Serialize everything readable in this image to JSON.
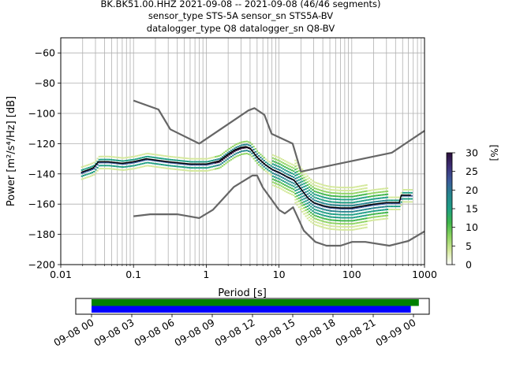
{
  "chart_data": {
    "type": "heatmap",
    "title_lines": [
      "BK.BK51.00.HHZ   2021-09-08 -- 2021-09-08  (46/46 segments)",
      "sensor_type STS-5A sensor_sn STS5A-BV",
      "datalogger_type Q8 datalogger_sn Q8-BV"
    ],
    "xlabel": "Period [s]",
    "ylabel": "Power [m²/s⁴/Hz] [dB]",
    "x_scale": "log",
    "xlim": [
      0.01,
      1000
    ],
    "ylim": [
      -200,
      -50
    ],
    "grid": true,
    "x_ticks": [
      {
        "value": 0.01,
        "label": "0.01"
      },
      {
        "value": 0.1,
        "label": "0.1"
      },
      {
        "value": 1,
        "label": "1"
      },
      {
        "value": 10,
        "label": "10"
      },
      {
        "value": 100,
        "label": "100"
      },
      {
        "value": 1000,
        "label": "1000"
      }
    ],
    "y_ticks": [
      -60,
      -80,
      -100,
      -120,
      -140,
      -160,
      -180,
      -200
    ],
    "colorbar": {
      "label": "[%]",
      "range": [
        0,
        30
      ],
      "ticks": [
        0,
        5,
        10,
        15,
        20,
        25,
        30
      ]
    },
    "nhnm": {
      "period": [
        0.1,
        0.22,
        0.32,
        0.8,
        3.8,
        4.6,
        6.3,
        7.9,
        15.4,
        20,
        354.8,
        1000
      ],
      "db": [
        -91.5,
        -97.4,
        -110.5,
        -120,
        -98,
        -96.5,
        -101,
        -113.5,
        -120,
        -138.5,
        -126,
        -111.5
      ]
    },
    "nlnm": {
      "period": [
        0.1,
        0.17,
        0.4,
        0.8,
        1.24,
        2.4,
        4.3,
        5,
        6,
        10,
        12,
        15.6,
        21.9,
        31.6,
        45,
        70,
        101,
        154,
        328,
        600,
        1000
      ],
      "db": [
        -168,
        -166.7,
        -166.7,
        -169.2,
        -163.7,
        -148.6,
        -141.1,
        -141.1,
        -149,
        -163.8,
        -166.2,
        -162.1,
        -177.5,
        -185,
        -187.5,
        -187.5,
        -185,
        -185,
        -187.5,
        -184.4,
        -178
      ]
    },
    "median": {
      "period": [
        0.019,
        0.025,
        0.028,
        0.033,
        0.045,
        0.07,
        0.1,
        0.15,
        0.3,
        0.6,
        1.0,
        1.5,
        2.0,
        2.5,
        3.0,
        3.5,
        4.0,
        5.0,
        6.5,
        8.0,
        10,
        13,
        16,
        20,
        25,
        30,
        40,
        50,
        70,
        100,
        150,
        200,
        300,
        450,
        480,
        650
      ],
      "db": [
        -139,
        -137,
        -136,
        -132,
        -132,
        -133,
        -132,
        -130,
        -132,
        -133.5,
        -133.5,
        -131.5,
        -127,
        -124,
        -122.5,
        -122,
        -123,
        -129,
        -134,
        -137,
        -139,
        -142,
        -144,
        -150,
        -156,
        -159,
        -161,
        -162,
        -162.5,
        -162.5,
        -161,
        -160,
        -159,
        -159,
        -154,
        -154
      ]
    },
    "density_colors": [
      "#ffffff",
      "#d4e89b",
      "#8fd461",
      "#3fb64a",
      "#1e9e84",
      "#25858e",
      "#3b5a9a",
      "#3d2f76",
      "#2b0f3a"
    ],
    "availability": {
      "x_ticks": [
        "09-08 00",
        "09-08 03",
        "09-08 06",
        "09-08 09",
        "09-08 12",
        "09-08 15",
        "09-08 18",
        "09-08 21",
        "09-09 00"
      ],
      "bars": [
        {
          "color": "#008000",
          "start_hours": 0.0,
          "end_hours": 24.4
        },
        {
          "color": "#0000ff",
          "start_hours": 0.0,
          "end_hours": 23.8
        }
      ]
    }
  }
}
